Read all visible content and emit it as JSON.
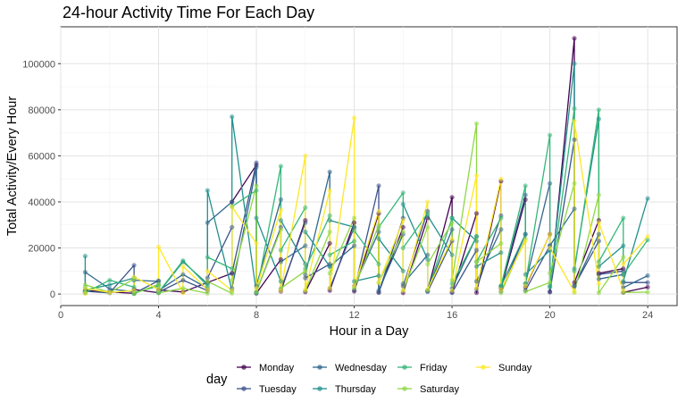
{
  "chart_data": {
    "type": "line",
    "title": "24-hour Activity Time For Each Day",
    "xlabel": "Hour in a Day",
    "ylabel": "Total Activity/Every Hour",
    "xlim": [
      0,
      25.2
    ],
    "ylim": [
      -5000,
      116000
    ],
    "x_ticks": [
      0,
      4,
      8,
      12,
      16,
      20,
      24
    ],
    "x_tick_labels": [
      "0",
      "4",
      "8",
      "12",
      "16",
      "20",
      "24"
    ],
    "y_ticks": [
      0,
      20000,
      40000,
      60000,
      80000,
      100000
    ],
    "y_tick_labels": [
      "0",
      "20000",
      "40000",
      "60000",
      "80000",
      "100000"
    ],
    "grid": true,
    "legend_title": "day",
    "legend_position": "bottom",
    "series": [
      {
        "name": "Monday",
        "color": "#440154",
        "x": [
          1,
          1,
          2,
          3,
          3,
          4,
          4,
          5,
          6,
          7,
          7,
          8,
          8,
          9,
          9,
          10,
          10,
          11,
          11,
          12,
          12,
          13,
          13,
          14,
          14,
          15,
          15,
          16,
          16,
          17,
          17,
          18,
          18,
          19,
          19,
          20,
          20,
          21,
          21,
          22,
          22,
          23,
          23,
          24
        ],
        "y": [
          800,
          1500,
          900,
          300,
          2000,
          600,
          1800,
          900,
          5000,
          9000,
          40000,
          56000,
          300,
          15000,
          1200,
          32000,
          900,
          22000,
          1500,
          31000,
          1200,
          35000,
          700,
          29000,
          500,
          33000,
          1400,
          42000,
          800,
          35000,
          600,
          49000,
          2500,
          41000,
          3000,
          26000,
          1000,
          111000,
          5000,
          32000,
          9000,
          11000,
          700,
          3000
        ]
      },
      {
        "name": "Tuesday",
        "color": "#3b528b",
        "x": [
          1,
          1,
          2,
          3,
          3,
          4,
          4,
          5,
          6,
          6,
          7,
          7,
          8,
          8,
          9,
          9,
          10,
          10,
          11,
          11,
          12,
          12,
          13,
          13,
          14,
          14,
          15,
          15,
          16,
          16,
          17,
          17,
          18,
          18,
          19,
          19,
          20,
          20,
          21,
          21,
          22,
          22,
          23,
          23,
          24
        ],
        "y": [
          600,
          1200,
          500,
          12500,
          300,
          5800,
          800,
          6000,
          1500,
          7000,
          29000,
          9000,
          57000,
          800,
          29000,
          2000,
          31000,
          7000,
          13000,
          2500,
          29000,
          1800,
          47000,
          700,
          33000,
          3500,
          36000,
          1000,
          23000,
          600,
          19000,
          2100,
          34000,
          1200,
          26000,
          1500,
          21000,
          800,
          67000,
          3500,
          23000,
          8500,
          10000,
          5000,
          5000
        ]
      },
      {
        "name": "Wednesday",
        "color": "#31688e",
        "x": [
          1,
          1,
          2,
          3,
          3,
          4,
          4,
          5,
          6,
          6,
          7,
          7,
          8,
          8,
          9,
          9,
          10,
          10,
          11,
          11,
          12,
          12,
          13,
          13,
          14,
          14,
          15,
          15,
          16,
          16,
          17,
          17,
          18,
          18,
          19,
          19,
          20,
          20,
          21,
          21,
          22,
          22,
          23,
          23,
          24
        ],
        "y": [
          1000,
          9500,
          2200,
          1000,
          6000,
          5500,
          1500,
          8500,
          2500,
          31000,
          40000,
          2500,
          55000,
          3500,
          41000,
          14000,
          21000,
          8500,
          53000,
          12000,
          21000,
          3500,
          27000,
          1500,
          26000,
          4500,
          17000,
          1500,
          28000,
          2500,
          25000,
          5500,
          28000,
          3500,
          43000,
          4500,
          48000,
          21000,
          37000,
          3500,
          26000,
          6500,
          8500,
          2800,
          8000
        ]
      },
      {
        "name": "Thursday",
        "color": "#21908d",
        "x": [
          1,
          1,
          2,
          3,
          3,
          4,
          4,
          5,
          6,
          6,
          7,
          7,
          8,
          8,
          9,
          9,
          10,
          10,
          11,
          11,
          12,
          12,
          13,
          13,
          14,
          14,
          15,
          15,
          16,
          16,
          17,
          17,
          18,
          18,
          19,
          19,
          20,
          20,
          21,
          21,
          22,
          22,
          23,
          23,
          24
        ],
        "y": [
          16500,
          1800,
          4000,
          7000,
          200,
          4200,
          600,
          14000,
          4500,
          45000,
          1500,
          77000,
          500,
          33000,
          5500,
          32000,
          13000,
          27000,
          12000,
          32000,
          29000,
          5500,
          8000,
          24000,
          10000,
          39000,
          15000,
          34000,
          17000,
          33000,
          23000,
          12000,
          18000,
          3500,
          26000,
          8500,
          19000,
          3500,
          100000,
          11000,
          76000,
          12000,
          21000,
          5500,
          41500
        ]
      },
      {
        "name": "Friday",
        "color": "#35b779",
        "x": [
          1,
          1,
          2,
          3,
          3,
          4,
          4,
          5,
          6,
          6,
          7,
          7,
          8,
          8,
          9,
          9,
          10,
          10,
          11,
          11,
          12,
          12,
          13,
          13,
          14,
          14,
          15,
          15,
          16,
          16,
          17,
          17,
          18,
          18,
          19,
          19,
          20,
          20,
          21,
          21,
          22,
          22,
          23,
          23,
          24
        ],
        "y": [
          3000,
          600,
          6000,
          3000,
          500,
          3500,
          800,
          14500,
          3500,
          16000,
          11000,
          38000,
          45000,
          700,
          55500,
          19000,
          37500,
          11000,
          34000,
          17000,
          23000,
          27500,
          13000,
          29000,
          44000,
          20000,
          35000,
          1500,
          33000,
          4500,
          25000,
          14000,
          33000,
          3500,
          47000,
          4500,
          69000,
          3000,
          80500,
          10000,
          80000,
          14000,
          33000,
          8500,
          23500
        ]
      },
      {
        "name": "Saturday",
        "color": "#8fd744",
        "x": [
          1,
          1,
          2,
          3,
          3,
          4,
          4,
          5,
          6,
          6,
          7,
          7,
          8,
          8,
          9,
          9,
          10,
          10,
          11,
          11,
          12,
          12,
          13,
          13,
          14,
          14,
          15,
          15,
          16,
          16,
          17,
          17,
          18,
          18,
          19,
          19,
          20,
          20,
          21,
          21,
          22,
          22,
          23,
          23,
          24
        ],
        "y": [
          800,
          4000,
          700,
          6500,
          200,
          4200,
          500,
          2500,
          300,
          5500,
          300,
          6000,
          47000,
          900,
          28000,
          2500,
          10000,
          1500,
          27000,
          9000,
          33000,
          2500,
          30000,
          5000,
          27000,
          1500,
          29000,
          13000,
          31000,
          6000,
          74000,
          14000,
          22000,
          500,
          24000,
          1000,
          5000,
          9000,
          48000,
          700,
          43000,
          500,
          16000,
          700,
          800
        ]
      },
      {
        "name": "Sunday",
        "color": "#fde725",
        "x": [
          1,
          1,
          2,
          3,
          3,
          4,
          4,
          5,
          5,
          6,
          6,
          7,
          7,
          8,
          8,
          9,
          9,
          10,
          10,
          11,
          11,
          12,
          12,
          13,
          13,
          14,
          14,
          15,
          15,
          16,
          16,
          17,
          17,
          18,
          18,
          19,
          19,
          20,
          20,
          21,
          21,
          22,
          22,
          23,
          23,
          24
        ],
        "y": [
          200,
          2500,
          700,
          1500,
          7500,
          2000,
          20500,
          500,
          12000,
          2000,
          10000,
          1500,
          38000,
          22000,
          2500,
          36500,
          1500,
          60000,
          2000,
          45000,
          2500,
          76500,
          3500,
          36000,
          5000,
          32000,
          1500,
          40000,
          2000,
          24000,
          1500,
          51500,
          2500,
          50000,
          2000,
          23000,
          3500,
          26000,
          20000,
          1000,
          75000,
          4500,
          31000,
          1500,
          13000,
          25000
        ]
      }
    ]
  }
}
